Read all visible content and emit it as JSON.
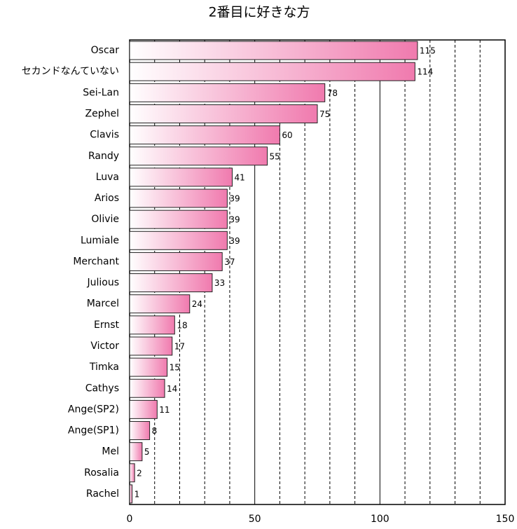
{
  "chart_data": {
    "type": "bar",
    "orientation": "horizontal",
    "title": "2番目に好きな方",
    "categories": [
      "Oscar",
      "セカンドなんていない",
      "Sei-Lan",
      "Zephel",
      "Clavis",
      "Randy",
      "Luva",
      "Arios",
      "Olivie",
      "Lumiale",
      "Merchant",
      "Julious",
      "Marcel",
      "Ernst",
      "Victor",
      "Timka",
      "Cathys",
      "Ange(SP2)",
      "Ange(SP1)",
      "Mel",
      "Rosalia",
      "Rachel"
    ],
    "values": [
      115,
      114,
      78,
      75,
      60,
      55,
      41,
      39,
      39,
      39,
      37,
      33,
      24,
      18,
      17,
      15,
      14,
      11,
      8,
      5,
      2,
      1
    ],
    "color": "#f07aae",
    "xlim": [
      0,
      150
    ],
    "xticks": [
      0,
      50,
      100,
      150
    ],
    "minor_xticks": [
      10,
      20,
      30,
      40,
      60,
      70,
      80,
      90,
      110,
      120,
      130,
      140
    ],
    "grid": true
  }
}
